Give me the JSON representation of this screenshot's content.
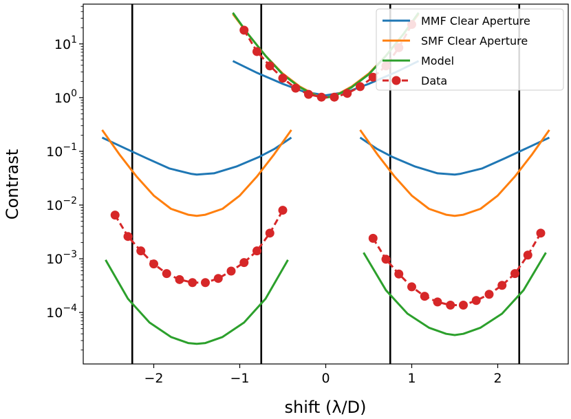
{
  "chart_data": {
    "type": "line",
    "xlabel": "shift (λ/D)",
    "ylabel": "Contrast",
    "xlim": [
      -2.82,
      2.82
    ],
    "ylim": [
      1.1e-05,
      55
    ],
    "yscale": "log",
    "grid": false,
    "legend_position": "top-right",
    "x_ticks": [
      {
        "value": -2,
        "label": "−2"
      },
      {
        "value": -1,
        "label": "−1"
      },
      {
        "value": 0,
        "label": "0"
      },
      {
        "value": 1,
        "label": "1"
      },
      {
        "value": 2,
        "label": "2"
      }
    ],
    "y_ticks": [
      {
        "value": 0.0001,
        "base": "10",
        "exp": "−4"
      },
      {
        "value": 0.001,
        "base": "10",
        "exp": "−3"
      },
      {
        "value": 0.01,
        "base": "10",
        "exp": "−2"
      },
      {
        "value": 0.1,
        "base": "10",
        "exp": "−1"
      },
      {
        "value": 1,
        "base": "10",
        "exp": "0"
      },
      {
        "value": 10,
        "base": "10",
        "exp": "1"
      }
    ],
    "vertical_lines": [
      -2.25,
      -0.75,
      0.75,
      2.25
    ],
    "series": [
      {
        "name": "MMF Clear Aperture",
        "color": "#1f77b4",
        "style": "solid",
        "segments": [
          {
            "x": [
              -2.6,
              -2.34,
              -2.08,
              -1.82,
              -1.56,
              -1.5,
              -1.3,
              -1.04,
              -0.78,
              -0.6,
              -0.4
            ],
            "y": [
              0.18,
              0.115,
              0.074,
              0.048,
              0.038,
              0.037,
              0.039,
              0.052,
              0.078,
              0.11,
              0.18
            ]
          },
          {
            "x": [
              -1.08,
              -0.8,
              -0.5,
              -0.25,
              0,
              0.25,
              0.5,
              0.8,
              1.08
            ],
            "y": [
              4.8,
              2.9,
              1.8,
              1.28,
              1.1,
              1.28,
              1.8,
              2.9,
              4.8
            ]
          },
          {
            "x": [
              0.4,
              0.6,
              0.78,
              1.04,
              1.3,
              1.5,
              1.56,
              1.82,
              2.08,
              2.34,
              2.6
            ],
            "y": [
              0.18,
              0.11,
              0.078,
              0.052,
              0.039,
              0.037,
              0.038,
              0.048,
              0.074,
              0.115,
              0.18
            ]
          }
        ]
      },
      {
        "name": "SMF Clear Aperture",
        "color": "#ff7f0e",
        "style": "solid",
        "segments": [
          {
            "x": [
              -2.6,
              -2.4,
              -2.2,
              -2.0,
              -1.8,
              -1.6,
              -1.5,
              -1.4,
              -1.2,
              -1.0,
              -0.8,
              -0.6,
              -0.4
            ],
            "y": [
              0.25,
              0.088,
              0.034,
              0.015,
              0.0085,
              0.0066,
              0.0063,
              0.0066,
              0.0085,
              0.015,
              0.034,
              0.088,
              0.25
            ]
          },
          {
            "x": [
              -1.08,
              -0.9,
              -0.7,
              -0.5,
              -0.3,
              -0.1,
              0,
              0.1,
              0.3,
              0.5,
              0.7,
              0.9,
              1.08
            ],
            "y": [
              36,
              15,
              6.0,
              2.8,
              1.6,
              1.07,
              1.0,
              1.07,
              1.6,
              2.8,
              6.0,
              15,
              36
            ]
          },
          {
            "x": [
              0.4,
              0.6,
              0.8,
              1.0,
              1.2,
              1.4,
              1.5,
              1.6,
              1.8,
              2.0,
              2.2,
              2.4,
              2.6
            ],
            "y": [
              0.25,
              0.088,
              0.034,
              0.015,
              0.0085,
              0.0066,
              0.0063,
              0.0066,
              0.0085,
              0.015,
              0.034,
              0.088,
              0.25
            ]
          }
        ]
      },
      {
        "name": "Model",
        "color": "#2ca02c",
        "style": "solid",
        "segments": [
          {
            "x": [
              -2.56,
              -2.3,
              -2.05,
              -1.8,
              -1.6,
              -1.5,
              -1.4,
              -1.2,
              -0.95,
              -0.7,
              -0.44
            ],
            "y": [
              0.00095,
              0.00018,
              6.5e-05,
              3.5e-05,
              2.7e-05,
              2.6e-05,
              2.7e-05,
              3.5e-05,
              6.5e-05,
              0.00018,
              0.00095
            ]
          },
          {
            "x": [
              -1.08,
              -0.9,
              -0.7,
              -0.5,
              -0.3,
              -0.1,
              0,
              0.1,
              0.3,
              0.5,
              0.7,
              0.9,
              1.08
            ],
            "y": [
              38,
              15,
              6.0,
              2.7,
              1.55,
              1.06,
              1.0,
              1.06,
              1.55,
              2.7,
              6.0,
              15,
              38
            ]
          },
          {
            "x": [
              0.44,
              0.7,
              0.95,
              1.2,
              1.4,
              1.5,
              1.6,
              1.8,
              2.05,
              2.3,
              2.56
            ],
            "y": [
              0.0013,
              0.00026,
              9.5e-05,
              5.2e-05,
              4e-05,
              3.8e-05,
              4e-05,
              5.2e-05,
              9.5e-05,
              0.00026,
              0.0013
            ]
          }
        ]
      },
      {
        "name": "Data",
        "color": "#d62728",
        "style": "dashed-markers",
        "segments": [
          {
            "x": [
              -2.45,
              -2.3,
              -2.15,
              -2.0,
              -1.85,
              -1.7,
              -1.55,
              -1.4,
              -1.25,
              -1.1,
              -0.95,
              -0.8,
              -0.65,
              -0.5
            ],
            "y": [
              0.0065,
              0.0026,
              0.0014,
              0.0008,
              0.00053,
              0.00041,
              0.00036,
              0.00036,
              0.00043,
              0.00059,
              0.00085,
              0.0014,
              0.003,
              0.008
            ]
          },
          {
            "x": [
              -0.95,
              -0.8,
              -0.65,
              -0.5,
              -0.35,
              -0.2,
              -0.05,
              0.1,
              0.25,
              0.4,
              0.55,
              0.7,
              0.85,
              1.0
            ],
            "y": [
              18,
              7.2,
              3.9,
              2.3,
              1.5,
              1.15,
              1.02,
              1.02,
              1.2,
              1.6,
              2.4,
              3.9,
              8.5,
              23
            ]
          },
          {
            "x": [
              0.55,
              0.7,
              0.85,
              1.0,
              1.15,
              1.3,
              1.45,
              1.6,
              1.75,
              1.9,
              2.05,
              2.2,
              2.35,
              2.5
            ],
            "y": [
              0.0024,
              0.00098,
              0.00052,
              0.0003,
              0.0002,
              0.000157,
              0.000137,
              0.000137,
              0.000167,
              0.000218,
              0.00032,
              0.00053,
              0.00117,
              0.003
            ]
          }
        ]
      }
    ]
  }
}
